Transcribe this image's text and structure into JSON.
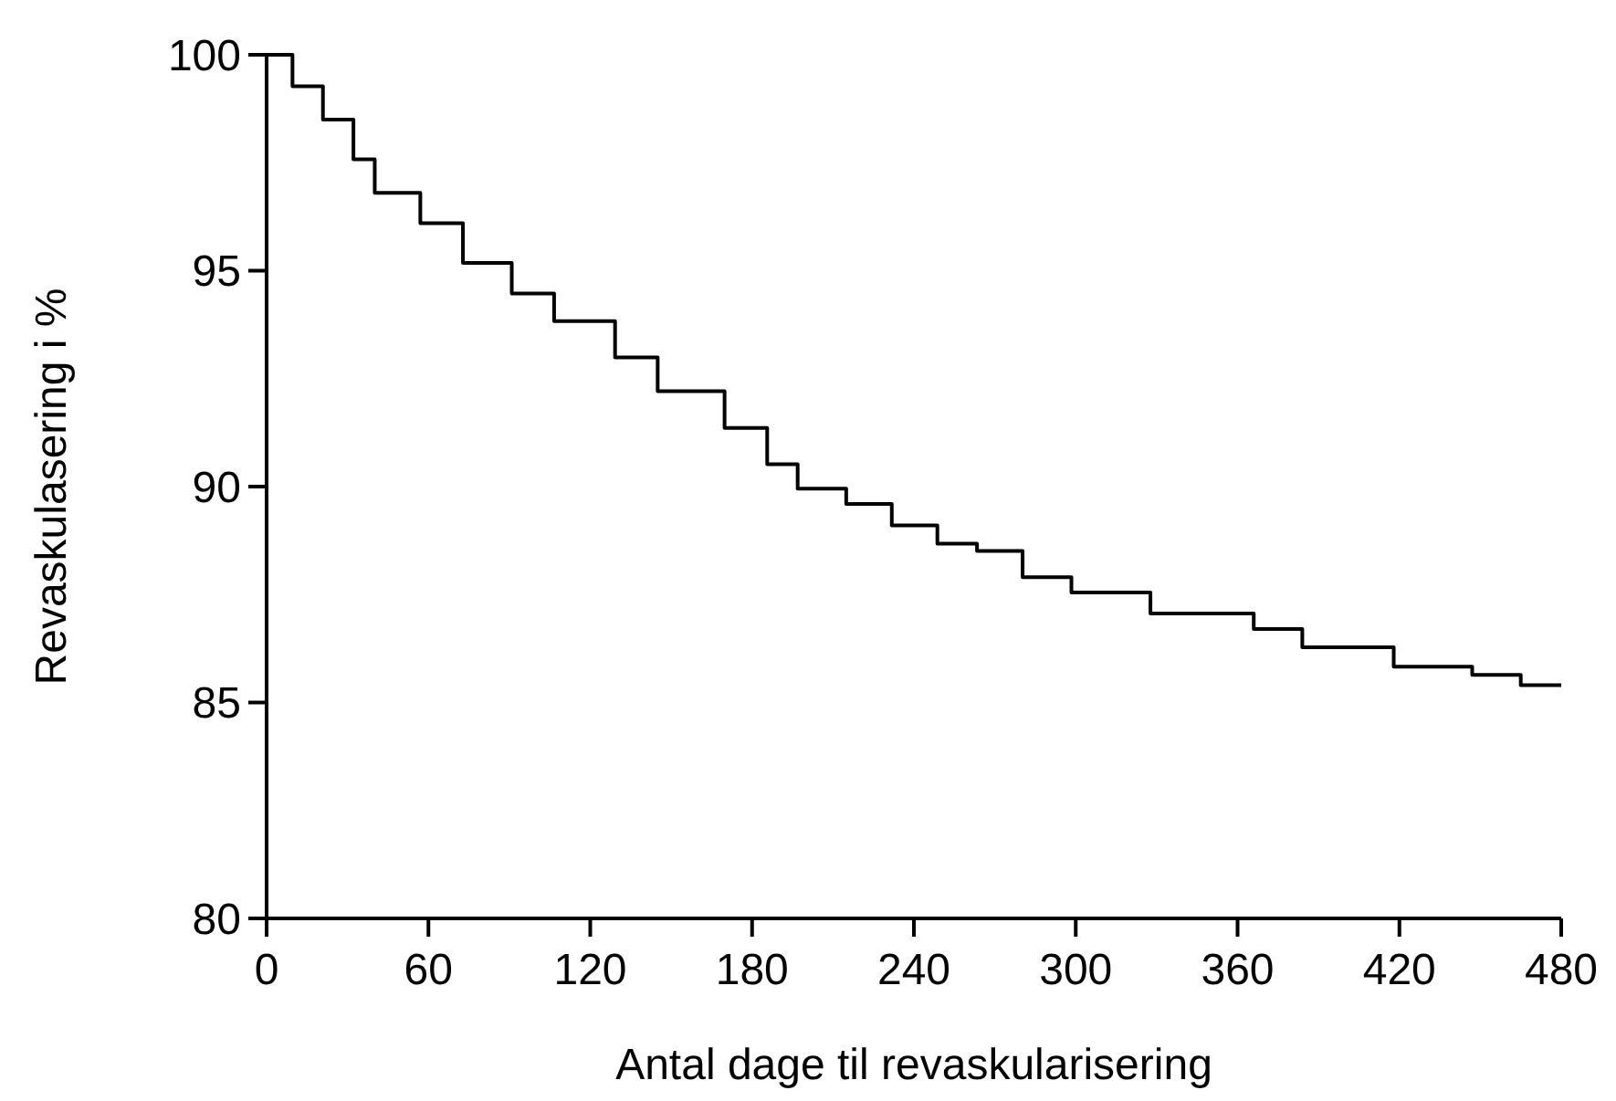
{
  "chart_data": {
    "type": "step",
    "xlabel": "Antal dage til revaskularisering",
    "ylabel": "Revaskulasering i %",
    "x": [
      0,
      6.3,
      9.6,
      20.9,
      32.2,
      40.1,
      57,
      72.8,
      90.9,
      106.6,
      129.2,
      145,
      169.8,
      185.6,
      196.9,
      214.9,
      231.8,
      248.7,
      263.4,
      280.3,
      298.4,
      327.7,
      366,
      384,
      417.9,
      447,
      465,
      480
    ],
    "values": [
      100,
      100,
      99.27,
      98.5,
      97.58,
      96.8,
      96.1,
      95.18,
      94.47,
      93.83,
      92.99,
      92.21,
      91.36,
      90.52,
      89.95,
      89.6,
      89.1,
      88.68,
      88.51,
      87.9,
      87.55,
      87.06,
      86.7,
      86.28,
      85.83,
      85.64,
      85.4,
      85.4
    ],
    "color": "#000000",
    "xlim": [
      0,
      480
    ],
    "xticks": [
      0,
      60,
      120,
      180,
      240,
      300,
      360,
      420,
      480
    ],
    "ylim": [
      80,
      100
    ],
    "yticks": [
      80,
      85,
      90,
      95,
      100
    ],
    "grid": false,
    "marker": "none",
    "line_style": "solid"
  }
}
